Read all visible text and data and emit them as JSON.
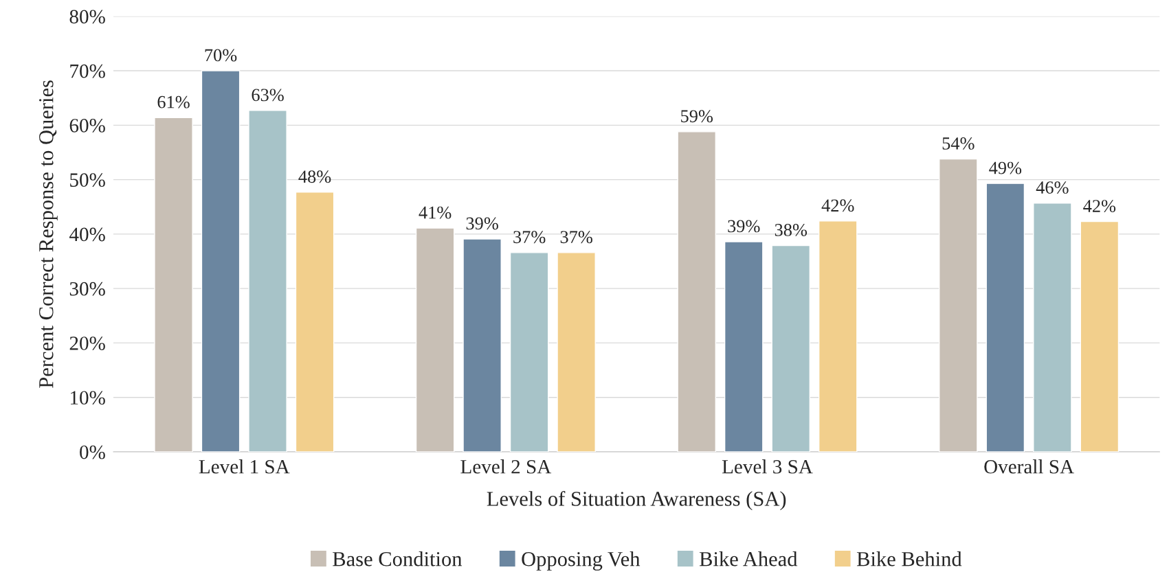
{
  "chart_data": {
    "type": "bar",
    "xlabel": "Levels of Situation Awareness (SA)",
    "ylabel": "Percent Correct Response to Queries",
    "categories": [
      "Level 1 SA",
      "Level 2 SA",
      "Level 3 SA",
      "Overall SA"
    ],
    "series": [
      {
        "name": "Base Condition",
        "color": "#c8bfb5",
        "values": [
          61.4,
          41.1,
          58.8,
          53.8
        ],
        "value_labels": [
          "61%",
          "41%",
          "59%",
          "54%"
        ]
      },
      {
        "name": "Opposing Veh",
        "color": "#6b86a0",
        "values": [
          70,
          39.1,
          38.6,
          49.3
        ],
        "value_labels": [
          "70%",
          "39%",
          "39%",
          "49%"
        ]
      },
      {
        "name": "Bike Ahead",
        "color": "#a7c3c8",
        "values": [
          62.7,
          36.6,
          37.9,
          45.7
        ],
        "value_labels": [
          "63%",
          "37%",
          "38%",
          "46%"
        ]
      },
      {
        "name": "Bike Behind",
        "color": "#f2cf8c",
        "values": [
          47.7,
          36.6,
          42.4,
          42.3
        ],
        "value_labels": [
          "48%",
          "37%",
          "42%",
          "42%"
        ]
      }
    ],
    "ylim": [
      0,
      80
    ],
    "yticks": [
      {
        "value": 0,
        "label": "0%"
      },
      {
        "value": 10,
        "label": "10%"
      },
      {
        "value": 20,
        "label": "20%"
      },
      {
        "value": 30,
        "label": "30%"
      },
      {
        "value": 40,
        "label": "40%"
      },
      {
        "value": 50,
        "label": "50%"
      },
      {
        "value": 60,
        "label": "60%"
      },
      {
        "value": 70,
        "label": "70%"
      },
      {
        "value": 80,
        "label": "80%"
      }
    ],
    "grid": "y",
    "legend": "bottom"
  }
}
